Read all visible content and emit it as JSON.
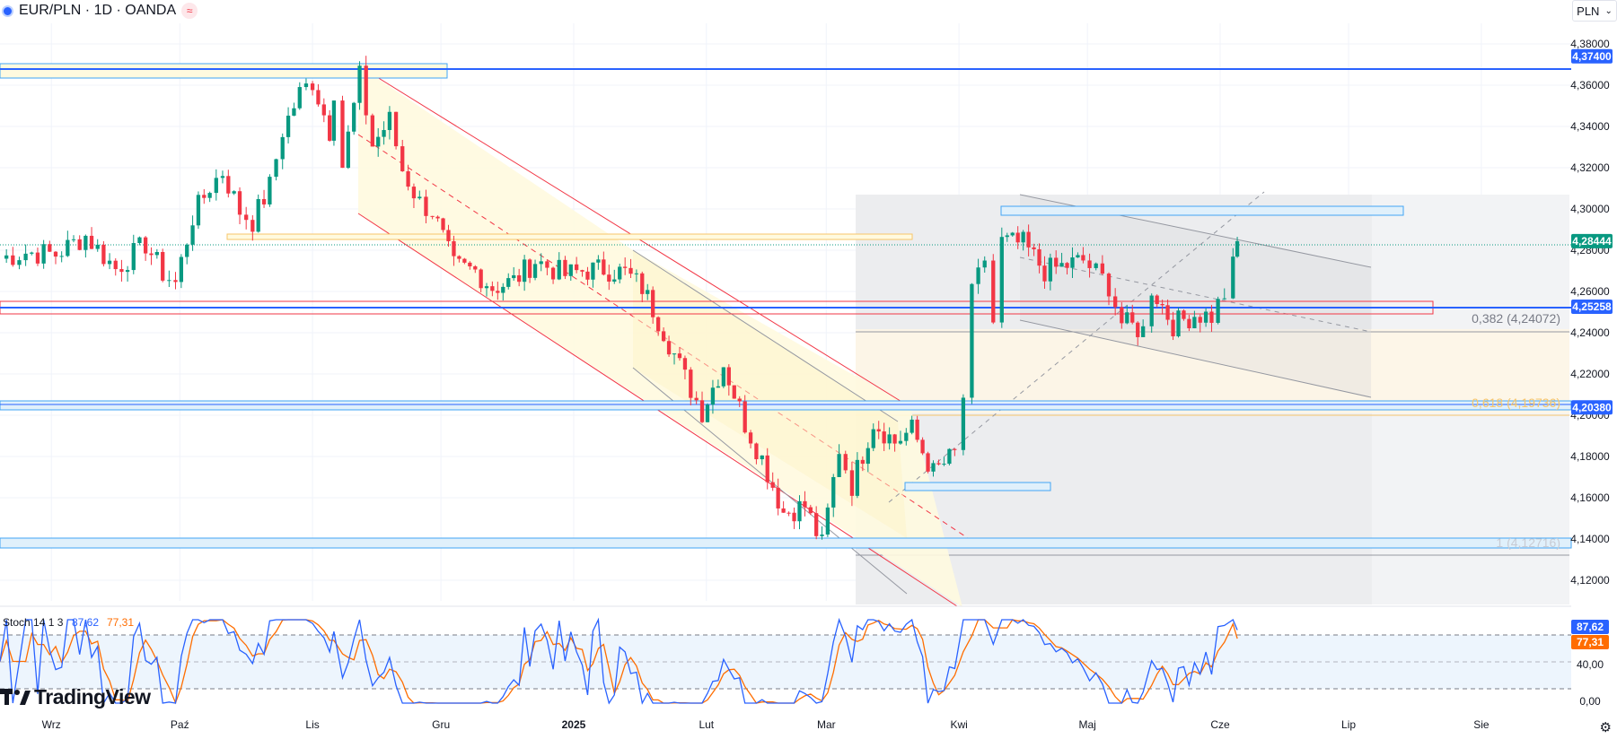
{
  "header": {
    "symbol": "EUR/PLN · 1D · OANDA",
    "currency": "PLN",
    "brand": "TradingView"
  },
  "colors": {
    "up": "#089981",
    "down": "#f23645",
    "accent": "#2962ff",
    "stoch_k": "#2962ff",
    "stoch_d": "#ff6d00"
  },
  "icons": [
    "symbol-logo-icon",
    "compare-icon",
    "chevron-down-icon",
    "tradingview-logo-icon",
    "settings-icon"
  ],
  "chart_data": {
    "type": "candlestick",
    "y_range": [
      4.11,
      4.39
    ],
    "y_ticks": [
      "4,38000",
      "4,36000",
      "4,34000",
      "4,32000",
      "4,30000",
      "4,28000",
      "4,26000",
      "4,24000",
      "4,22000",
      "4,20000",
      "4,18000",
      "4,16000",
      "4,14000",
      "4,12000"
    ],
    "y_tick_values": [
      4.38,
      4.36,
      4.34,
      4.32,
      4.3,
      4.28,
      4.26,
      4.24,
      4.22,
      4.2,
      4.18,
      4.16,
      4.14,
      4.12
    ],
    "x_labels": [
      "Wrz",
      "Paź",
      "Lis",
      "Gru",
      "2025",
      "Lut",
      "Mar",
      "Kwi",
      "Maj",
      "Cze",
      "Lip",
      "Sie"
    ],
    "x_dates": [
      "2024-09-01",
      "2024-10-01",
      "2024-11-01",
      "2024-12-01",
      "2025-01-01",
      "2025-02-01",
      "2025-03-01",
      "2025-04-01",
      "2025-05-01",
      "2025-06-01",
      "2025-07-01",
      "2025-08-01"
    ],
    "date_range": [
      "2024-08-20",
      "2025-08-22"
    ],
    "price_labels": [
      {
        "text": "4,37400",
        "value": 4.374,
        "color": "#2962ff"
      },
      {
        "text": "4,28444",
        "value": 4.2844,
        "color": "#089981"
      },
      {
        "text": "4,25258",
        "value": 4.2526,
        "color": "#2962ff"
      },
      {
        "text": "4,20380",
        "value": 4.2038,
        "color": "#2962ff"
      }
    ],
    "fib_labels": [
      {
        "text": "0,382 (4,24072)",
        "value": 4.2407
      },
      {
        "text": "0,618 (4,19736)",
        "value": 4.1974
      },
      {
        "text": "1 (4,12716)",
        "value": 4.1272
      }
    ],
    "closes": [
      [
        "2024-08-20",
        4.276
      ],
      [
        "2024-08-26",
        4.279
      ],
      [
        "2024-09-02",
        4.278
      ],
      [
        "2024-09-09",
        4.287
      ],
      [
        "2024-09-16",
        4.271
      ],
      [
        "2024-09-23",
        4.283
      ],
      [
        "2024-09-27",
        4.269
      ],
      [
        "2024-09-30",
        4.264
      ],
      [
        "2024-10-04",
        4.296
      ],
      [
        "2024-10-08",
        4.311
      ],
      [
        "2024-10-11",
        4.318
      ],
      [
        "2024-10-15",
        4.299
      ],
      [
        "2024-10-18",
        4.294
      ],
      [
        "2024-10-22",
        4.311
      ],
      [
        "2024-10-25",
        4.338
      ],
      [
        "2024-10-29",
        4.356
      ],
      [
        "2024-11-01",
        4.362
      ],
      [
        "2024-11-05",
        4.338
      ],
      [
        "2024-11-06",
        4.358
      ],
      [
        "2024-11-08",
        4.321
      ],
      [
        "2024-11-12",
        4.364
      ],
      [
        "2024-11-15",
        4.331
      ],
      [
        "2024-11-19",
        4.343
      ],
      [
        "2024-11-22",
        4.319
      ],
      [
        "2024-11-26",
        4.303
      ],
      [
        "2024-11-29",
        4.299
      ],
      [
        "2024-12-04",
        4.272
      ],
      [
        "2024-12-09",
        4.27
      ],
      [
        "2024-12-13",
        4.262
      ],
      [
        "2024-12-18",
        4.265
      ],
      [
        "2024-12-23",
        4.275
      ],
      [
        "2024-12-30",
        4.268
      ],
      [
        "2025-01-03",
        4.27
      ],
      [
        "2025-01-08",
        4.271
      ],
      [
        "2025-01-13",
        4.269
      ],
      [
        "2025-01-17",
        4.262
      ],
      [
        "2025-01-22",
        4.241
      ],
      [
        "2025-01-27",
        4.218
      ],
      [
        "2025-01-31",
        4.202
      ],
      [
        "2025-02-05",
        4.225
      ],
      [
        "2025-02-10",
        4.196
      ],
      [
        "2025-02-14",
        4.179
      ],
      [
        "2025-02-19",
        4.153
      ],
      [
        "2025-02-24",
        4.156
      ],
      [
        "2025-02-28",
        4.137
      ],
      [
        "2025-03-04",
        4.184
      ],
      [
        "2025-03-07",
        4.166
      ],
      [
        "2025-03-12",
        4.197
      ],
      [
        "2025-03-17",
        4.187
      ],
      [
        "2025-03-21",
        4.193
      ],
      [
        "2025-03-26",
        4.172
      ],
      [
        "2025-03-31",
        4.181
      ],
      [
        "2025-04-02",
        4.209
      ],
      [
        "2025-04-04",
        4.258
      ],
      [
        "2025-04-07",
        4.276
      ],
      [
        "2025-04-09",
        4.245
      ],
      [
        "2025-04-11",
        4.284
      ],
      [
        "2025-04-16",
        4.283
      ],
      [
        "2025-04-21",
        4.27
      ],
      [
        "2025-04-25",
        4.272
      ],
      [
        "2025-04-30",
        4.275
      ],
      [
        "2025-05-06",
        4.263
      ],
      [
        "2025-05-09",
        4.245
      ],
      [
        "2025-05-14",
        4.241
      ],
      [
        "2025-05-16",
        4.262
      ],
      [
        "2025-05-21",
        4.244
      ],
      [
        "2025-05-26",
        4.249
      ],
      [
        "2025-05-30",
        4.248
      ],
      [
        "2025-06-02",
        4.259
      ],
      [
        "2025-06-04",
        4.272
      ],
      [
        "2025-06-05",
        4.2844
      ]
    ],
    "stochastic": {
      "label": "Stoch 14 1 3",
      "k_value": "87,62",
      "d_value": "77,31",
      "k": 87.62,
      "d": 77.31,
      "y_ticks": [
        "40,00",
        "0,00"
      ],
      "levels": [
        80,
        50,
        20
      ]
    }
  }
}
